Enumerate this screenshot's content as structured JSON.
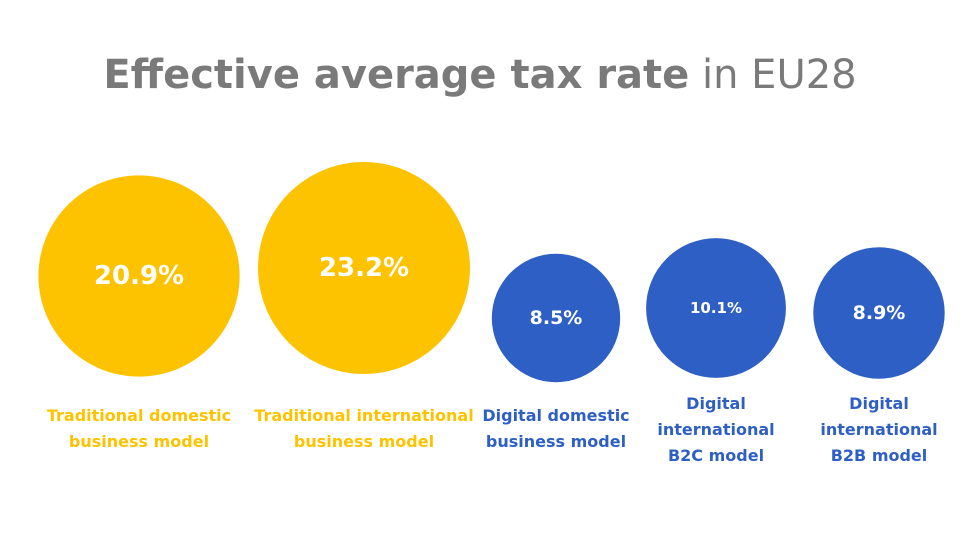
{
  "chart_data": {
    "type": "bubble",
    "title_bold": "Effective average tax rate",
    "title_light": "in EU28",
    "colors": {
      "traditional": "#fdc300",
      "digital": "#2e5fc4",
      "title": "#7a7a7a"
    },
    "categories": [
      {
        "label_lines": [
          "Traditional domestic",
          "business model"
        ],
        "value": 20.9,
        "value_label": "20.9%",
        "group": "traditional"
      },
      {
        "label_lines": [
          "Traditional international",
          "business model"
        ],
        "value": 23.2,
        "value_label": "23.2%",
        "group": "traditional"
      },
      {
        "label_lines": [
          "Digital domestic",
          "business model"
        ],
        "value": 8.5,
        "value_label": "8.5%",
        "group": "digital"
      },
      {
        "label_lines": [
          "Digital",
          "international",
          "B2C model"
        ],
        "value": 10.1,
        "value_label": "10.1%",
        "group": "digital"
      },
      {
        "label_lines": [
          "Digital",
          "international",
          "B2B model"
        ],
        "value": 8.9,
        "value_label": "8.9%",
        "group": "digital"
      }
    ]
  }
}
